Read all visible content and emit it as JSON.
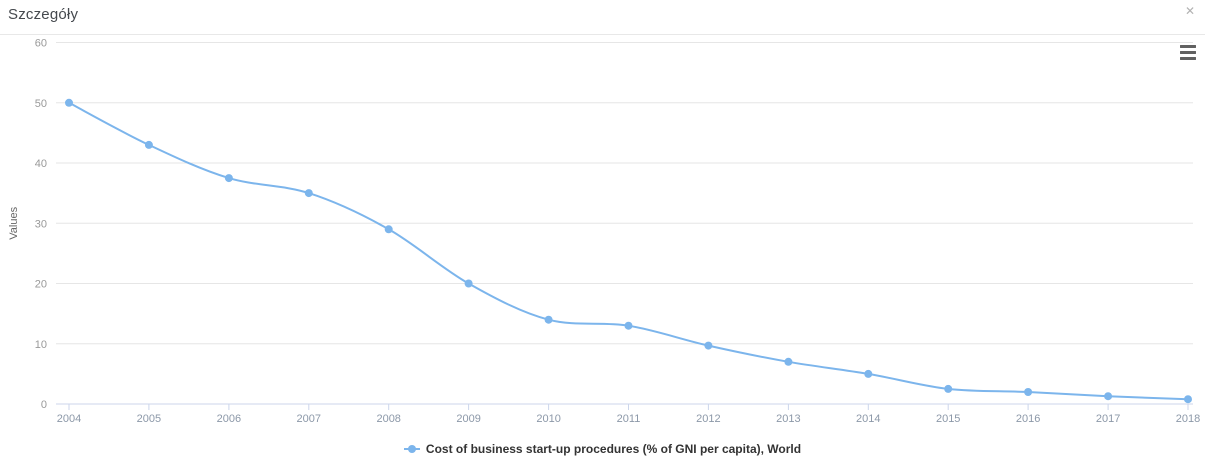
{
  "header": {
    "title": "Szczegóły",
    "close_glyph": "✕"
  },
  "colors": {
    "background": "#ffffff",
    "divider": "#e8e8e8",
    "title_text": "#45494e",
    "close_icon": "#b2b2b2",
    "menu_icon": "#616161",
    "grid": "#e6e6e6",
    "axis_line": "#ccd6eb",
    "x_tick_label": "#8c98a8",
    "y_tick_label": "#999999",
    "axis_title": "#666666",
    "legend_text": "#333333",
    "series": "#7cb5ec"
  },
  "chart_data": {
    "type": "line",
    "title": "",
    "xlabel": "",
    "ylabel": "Values",
    "x": [
      2004,
      2005,
      2006,
      2007,
      2008,
      2009,
      2010,
      2011,
      2012,
      2013,
      2014,
      2015,
      2016,
      2017,
      2018
    ],
    "series": [
      {
        "name": "Cost of business start-up procedures (% of GNI per capita), World",
        "color": "#7cb5ec",
        "values": [
          50,
          43,
          37.5,
          35,
          29,
          20,
          14,
          13,
          9.7,
          7,
          5,
          2.5,
          2,
          1.3,
          0.8
        ]
      }
    ],
    "ylim": [
      0,
      60
    ],
    "yticks": [
      0,
      10,
      20,
      30,
      40,
      50,
      60
    ],
    "grid": true,
    "legend_position": "bottom-center",
    "marker": "circle"
  }
}
